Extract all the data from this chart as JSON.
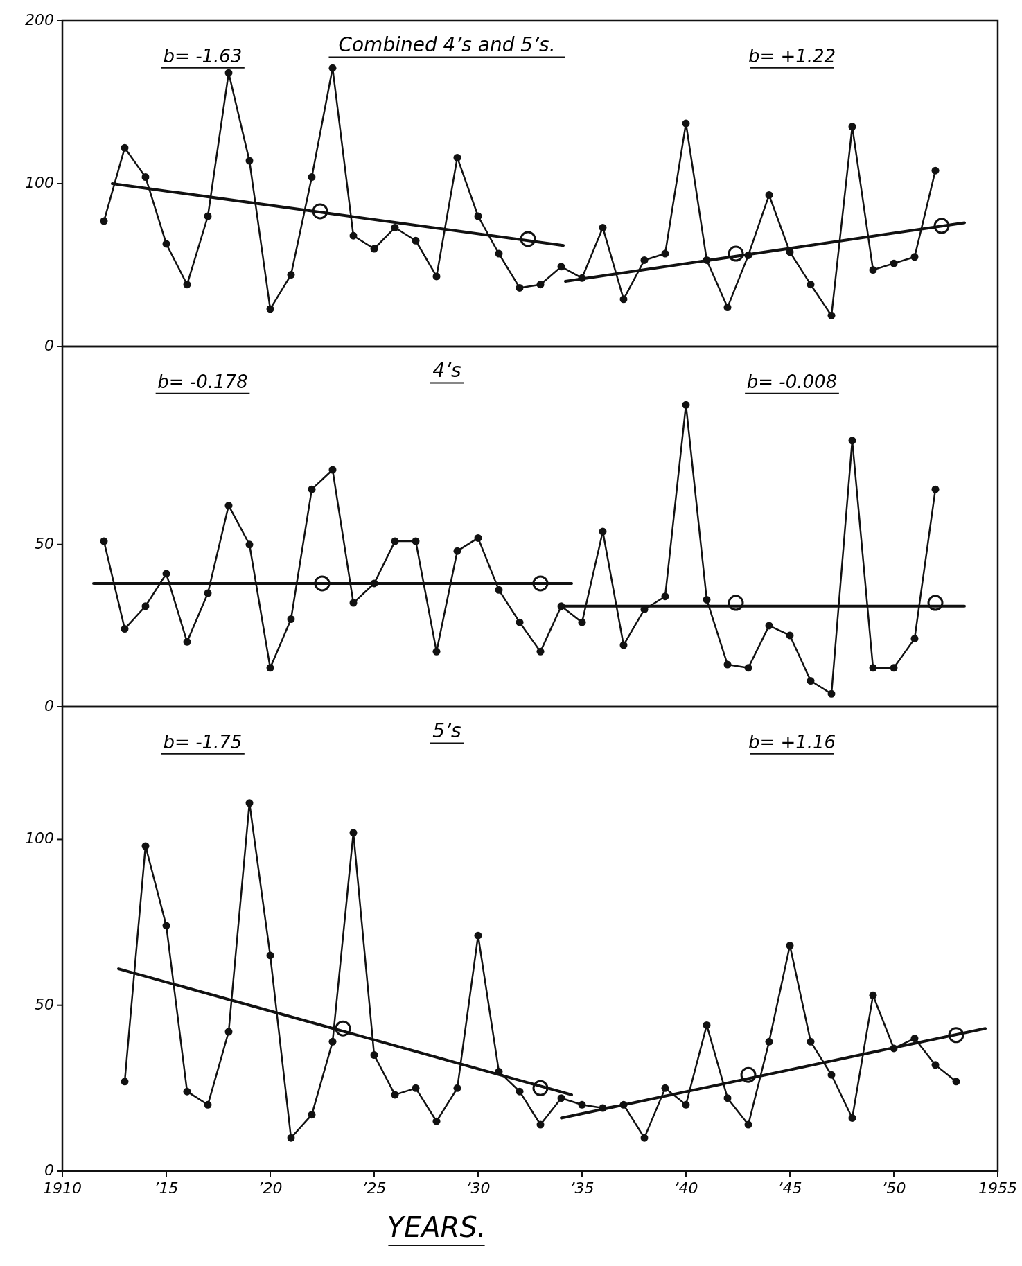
{
  "chart_data": [
    {
      "type": "line",
      "title": "Combined 4’s and 5’s.",
      "xlim": [
        1910,
        1955
      ],
      "ylim": [
        0,
        200
      ],
      "yticks": [
        0,
        100,
        200
      ],
      "tick_labels": "y",
      "series": [
        {
          "marker": "circle",
          "color": "#111111",
          "x": [
            1912,
            1913,
            1914,
            1915,
            1916,
            1917,
            1918,
            1919,
            1920,
            1921,
            1922,
            1923,
            1924,
            1925,
            1926,
            1927,
            1928,
            1929,
            1930,
            1931,
            1932,
            1933,
            1934,
            1935,
            1936,
            1937,
            1938,
            1939,
            1940,
            1941,
            1942,
            1943,
            1944,
            1945,
            1946,
            1947,
            1948,
            1949,
            1950,
            1951,
            1952
          ],
          "values": [
            77,
            122,
            104,
            63,
            38,
            80,
            168,
            114,
            23,
            44,
            104,
            171,
            68,
            60,
            73,
            65,
            43,
            116,
            80,
            57,
            36,
            38,
            49,
            42,
            73,
            29,
            53,
            57,
            137,
            53,
            24,
            56,
            93,
            58,
            38,
            19,
            135,
            47,
            51,
            55,
            108
          ]
        },
        {
          "marker": "none",
          "color": "#111111",
          "x": [
            1912.4,
            1934.1
          ],
          "values": [
            100,
            62
          ]
        },
        {
          "marker": "none",
          "color": "#111111",
          "x": [
            1934.2,
            1953.4
          ],
          "values": [
            40,
            76
          ]
        },
        {
          "type": "scatter",
          "marker": "circle",
          "color": "#111111",
          "x": [
            1922.4,
            1932.4,
            1942.4,
            1952.3
          ],
          "values": [
            83,
            66,
            57,
            74
          ]
        }
      ],
      "annotations": [
        "b= -1.63",
        "b= +1.22"
      ]
    },
    {
      "type": "line",
      "title": "4’s",
      "xlim": [
        1910,
        1955
      ],
      "ylim": [
        0,
        111
      ],
      "yticks": [
        0,
        50
      ],
      "tick_labels": "y",
      "series": [
        {
          "marker": "circle",
          "color": "#111111",
          "x": [
            1912,
            1913,
            1914,
            1915,
            1916,
            1917,
            1918,
            1919,
            1920,
            1921,
            1922,
            1923,
            1924,
            1925,
            1926,
            1927,
            1928,
            1929,
            1930,
            1931,
            1932,
            1933,
            1934,
            1935,
            1936,
            1937,
            1938,
            1939,
            1940,
            1941,
            1942,
            1943,
            1944,
            1945,
            1946,
            1947,
            1948,
            1949,
            1950,
            1951,
            1952
          ],
          "values": [
            51,
            24,
            31,
            41,
            20,
            35,
            62,
            50,
            12,
            27,
            67,
            73,
            32,
            38,
            51,
            51,
            17,
            48,
            52,
            36,
            26,
            17,
            31,
            26,
            54,
            19,
            30,
            34,
            93,
            33,
            13,
            12,
            25,
            22,
            8,
            4,
            82,
            12,
            12,
            21,
            67
          ]
        },
        {
          "marker": "none",
          "color": "#111111",
          "x": [
            1911.5,
            1934.5
          ],
          "values": [
            38,
            38
          ]
        },
        {
          "marker": "none",
          "color": "#111111",
          "x": [
            1934.2,
            1953.4
          ],
          "values": [
            31,
            31
          ]
        },
        {
          "type": "scatter",
          "marker": "circle",
          "color": "#111111",
          "x": [
            1922.5,
            1933,
            1942.4,
            1952
          ],
          "values": [
            38,
            38,
            32,
            32
          ]
        }
      ],
      "annotations": [
        "b= -0.178",
        "b= -0.008"
      ]
    },
    {
      "type": "line",
      "title": "5’s",
      "xlabel": "YEARS.",
      "xlim": [
        1910,
        1955
      ],
      "xticks": [
        1910,
        {
          "value": 1915,
          "label": "’15"
        },
        {
          "value": 1920,
          "label": "’20"
        },
        {
          "value": 1925,
          "label": "’25"
        },
        {
          "value": 1930,
          "label": "’30"
        },
        {
          "value": 1935,
          "label": "’35"
        },
        {
          "value": 1940,
          "label": "’40"
        },
        {
          "value": 1945,
          "label": "’45"
        },
        {
          "value": 1950,
          "label": "’50"
        },
        1955
      ],
      "ylim": [
        0,
        140
      ],
      "yticks": [
        0,
        50,
        100
      ],
      "series": [
        {
          "marker": "circle",
          "color": "#111111",
          "x": [
            1913,
            1914,
            1915,
            1916,
            1917,
            1918,
            1919,
            1920,
            1921,
            1922,
            1923,
            1924,
            1925,
            1926,
            1927,
            1928,
            1929,
            1930,
            1931,
            1932,
            1933,
            1934,
            1935,
            1936,
            1937,
            1938,
            1939,
            1940,
            1941,
            1942,
            1943,
            1944,
            1945,
            1946,
            1947,
            1948,
            1949,
            1950,
            1951,
            1952,
            1953
          ],
          "values": [
            27,
            98,
            74,
            24,
            20,
            42,
            111,
            65,
            10,
            17,
            39,
            102,
            35,
            23,
            25,
            15,
            25,
            71,
            30,
            24,
            14,
            22,
            20,
            19,
            20,
            10,
            25,
            20,
            44,
            22,
            14,
            39,
            68,
            39,
            29,
            16,
            53,
            37,
            40,
            32,
            27
          ]
        },
        {
          "marker": "none",
          "color": "#111111",
          "x": [
            1912.7,
            1934.5
          ],
          "values": [
            61,
            23
          ]
        },
        {
          "marker": "none",
          "color": "#111111",
          "x": [
            1934,
            1954.4
          ],
          "values": [
            16,
            43
          ]
        },
        {
          "type": "scatter",
          "marker": "circle",
          "color": "#111111",
          "x": [
            1923.5,
            1933,
            1943,
            1953
          ],
          "values": [
            43,
            25,
            29,
            41
          ]
        }
      ],
      "annotations": [
        "b= -1.75",
        "b= +1.16"
      ]
    }
  ]
}
